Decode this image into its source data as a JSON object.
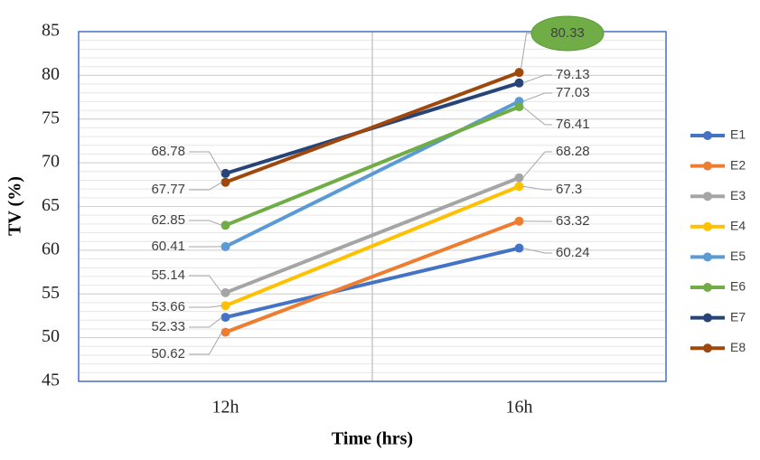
{
  "chart_data": {
    "type": "line",
    "x_label": "Time (hrs)",
    "y_label": "TV (%)",
    "categories": [
      "12h",
      "16h"
    ],
    "series": [
      {
        "name": "E1",
        "color": "#4472c4",
        "values": [
          52.33,
          60.24
        ]
      },
      {
        "name": "E2",
        "color": "#ed7d31",
        "values": [
          50.62,
          63.32
        ]
      },
      {
        "name": "E3",
        "color": "#a5a5a5",
        "values": [
          55.14,
          68.28
        ]
      },
      {
        "name": "E4",
        "color": "#ffc000",
        "values": [
          53.66,
          67.3
        ]
      },
      {
        "name": "E5",
        "color": "#5b9bd5",
        "values": [
          60.41,
          77.03
        ]
      },
      {
        "name": "E6",
        "color": "#70ad47",
        "values": [
          62.85,
          76.41
        ]
      },
      {
        "name": "E7",
        "color": "#264478",
        "values": [
          68.78,
          79.13
        ]
      },
      {
        "name": "E8",
        "color": "#9e480e",
        "values": [
          67.77,
          80.33
        ]
      }
    ],
    "ylim": [
      45,
      85
    ],
    "yticks": [
      45,
      50,
      55,
      60,
      65,
      70,
      75,
      80,
      85
    ],
    "grid": true,
    "legend": "right"
  }
}
